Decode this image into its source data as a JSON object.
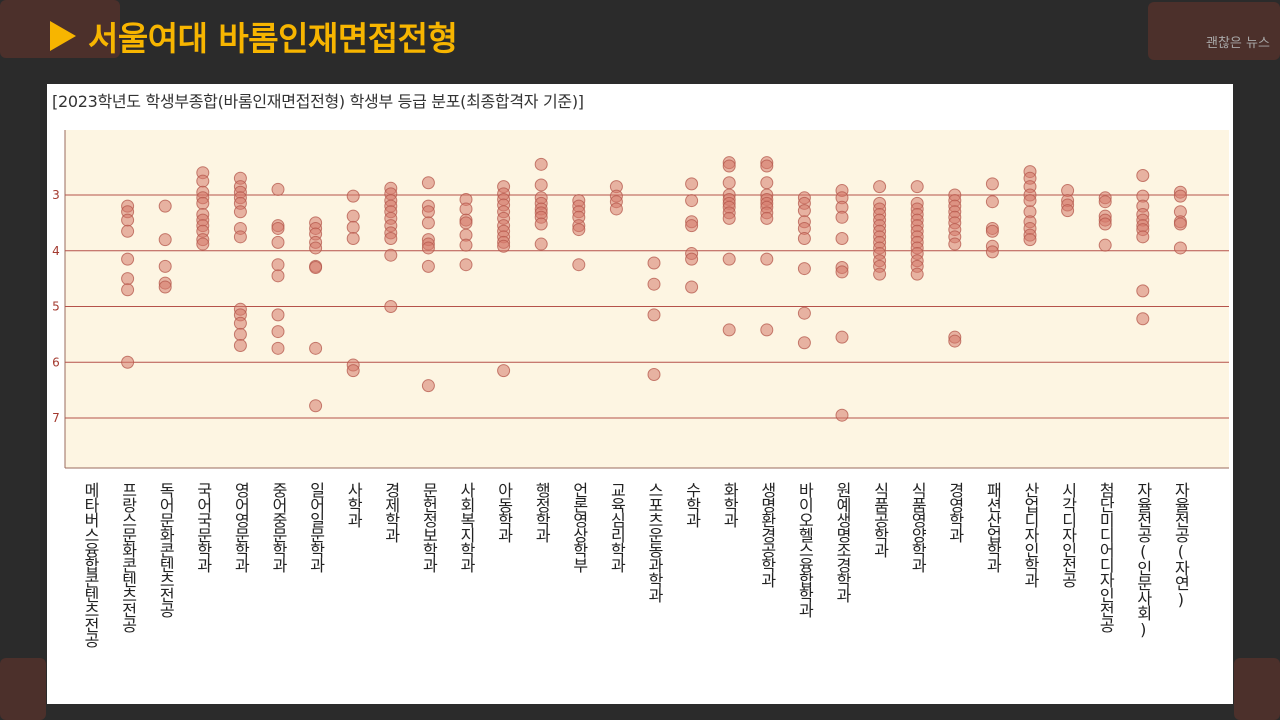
{
  "slide": {
    "title": "서울여대 바롬인재면접전형",
    "watermark": "괜찮은 뉴스"
  },
  "colors": {
    "title": "#f7b500",
    "background": "#2b2b2b",
    "plot_bg": "#fdf5e2",
    "grid": "#b5524a",
    "point_fill": "#d57a6c",
    "point_stroke": "#b4574b"
  },
  "chart_data": {
    "type": "scatter",
    "title": "[2023학년도 학생부종합(바롬인재면접전형) 학생부 등급 분포(최종합격자 기준)]",
    "xlabel": "",
    "ylabel": "",
    "y_ticks": [
      3,
      4,
      5,
      6,
      7
    ],
    "ylim": [
      1.8,
      7.9
    ],
    "y_inverted": true,
    "grid": "horizontal",
    "categories": [
      "메타버스융합콘텐츠전공",
      "프랑스문화콘텐츠전공",
      "독어문화콘텐츠전공",
      "국어국문학과",
      "영어영문학과",
      "중어중문학과",
      "일어일문학과",
      "사학과",
      "경제학과",
      "문헌정보학과",
      "사회복지학과",
      "아동학과",
      "행정학과",
      "언론영상학부",
      "교육심리학과",
      "스포츠운동과학과",
      "수학과",
      "화학과",
      "생명환경공학과",
      "바이오헬스융합학과",
      "원예생명조경학과",
      "식품공학과",
      "식품영양학과",
      "경영학과",
      "패션산업학과",
      "산업디자인학과",
      "시각디자인전공",
      "첨단미디어디자인전공",
      "자율전공(인문사회)",
      "자율전공(자연)"
    ],
    "values": [
      [],
      [
        3.2,
        3.3,
        3.45,
        3.65,
        4.15,
        4.5,
        4.7,
        6.0
      ],
      [
        3.2,
        3.8,
        4.28,
        4.58,
        4.65
      ],
      [
        2.6,
        2.75,
        2.95,
        3.05,
        3.15,
        3.35,
        3.45,
        3.55,
        3.65,
        3.8,
        3.88
      ],
      [
        2.7,
        2.85,
        2.95,
        3.05,
        3.15,
        3.3,
        3.6,
        3.75,
        5.05,
        5.15,
        5.3,
        5.5,
        5.7
      ],
      [
        2.9,
        3.55,
        3.6,
        3.85,
        4.25,
        4.45,
        5.15,
        5.45,
        5.75
      ],
      [
        3.5,
        3.6,
        3.7,
        3.85,
        3.95,
        4.28,
        4.3,
        5.75,
        6.78
      ],
      [
        3.02,
        3.38,
        3.58,
        3.78,
        6.05,
        6.15
      ],
      [
        2.88,
        2.98,
        3.1,
        3.2,
        3.3,
        3.42,
        3.55,
        3.68,
        3.78,
        4.08,
        5.0
      ],
      [
        2.78,
        3.2,
        3.3,
        3.5,
        3.8,
        3.88,
        3.95,
        4.28,
        6.42
      ],
      [
        3.08,
        3.25,
        3.45,
        3.5,
        3.72,
        3.9,
        4.25
      ],
      [
        2.85,
        2.98,
        3.08,
        3.18,
        3.3,
        3.42,
        3.55,
        3.65,
        3.75,
        3.85,
        3.92,
        6.15
      ],
      [
        2.45,
        2.82,
        3.05,
        3.15,
        3.25,
        3.32,
        3.4,
        3.52,
        3.88
      ],
      [
        3.1,
        3.2,
        3.3,
        3.4,
        3.55,
        3.62,
        4.25
      ],
      [
        2.85,
        3.02,
        3.12,
        3.25
      ],
      [
        4.22,
        4.6,
        5.15,
        6.22
      ],
      [
        2.8,
        3.1,
        3.48,
        3.55,
        4.05,
        4.15,
        4.65
      ],
      [
        2.42,
        2.48,
        2.78,
        3.0,
        3.08,
        3.15,
        3.22,
        3.32,
        3.42,
        4.15,
        5.42
      ],
      [
        2.42,
        2.48,
        2.78,
        3.0,
        3.08,
        3.15,
        3.22,
        3.32,
        3.42,
        4.15,
        5.42
      ],
      [
        3.05,
        3.15,
        3.28,
        3.48,
        3.6,
        3.78,
        4.32,
        5.12,
        5.65
      ],
      [
        2.92,
        3.05,
        3.22,
        3.4,
        3.78,
        4.3,
        4.38,
        5.55,
        6.95
      ],
      [
        2.85,
        3.15,
        3.25,
        3.35,
        3.45,
        3.55,
        3.65,
        3.75,
        3.85,
        3.95,
        4.05,
        4.18,
        4.28,
        4.42
      ],
      [
        2.85,
        3.15,
        3.25,
        3.35,
        3.45,
        3.55,
        3.65,
        3.75,
        3.85,
        3.95,
        4.05,
        4.18,
        4.28,
        4.42
      ],
      [
        3.0,
        3.1,
        3.2,
        3.3,
        3.4,
        3.5,
        3.62,
        3.75,
        3.88,
        5.55,
        5.62
      ],
      [
        2.8,
        3.12,
        3.6,
        3.65,
        3.92,
        4.02
      ],
      [
        2.58,
        2.7,
        2.85,
        3.0,
        3.1,
        3.3,
        3.48,
        3.6,
        3.72,
        3.8
      ],
      [
        2.92,
        3.1,
        3.18,
        3.28
      ],
      [
        3.05,
        3.12,
        3.38,
        3.45,
        3.52,
        3.9
      ],
      [
        2.65,
        3.02,
        3.2,
        3.35,
        3.45,
        3.55,
        3.62,
        3.75,
        4.72,
        5.22
      ],
      [
        2.95,
        3.02,
        3.3,
        3.48,
        3.52,
        3.95
      ]
    ]
  }
}
